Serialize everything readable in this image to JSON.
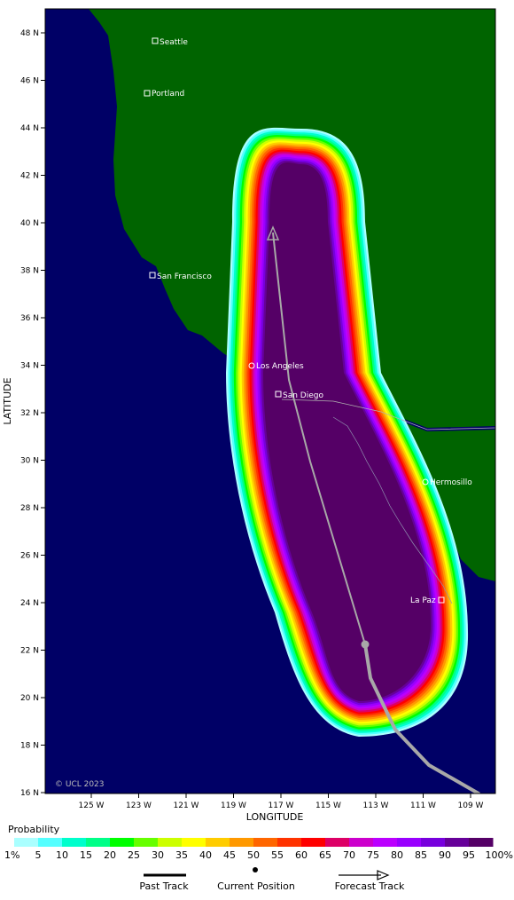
{
  "map": {
    "ylabel": "LATITUDE",
    "xlabel": "LONGITUDE",
    "watermark": "© UCL 2023",
    "lat_ticks": [
      "48 N",
      "46 N",
      "44 N",
      "42 N",
      "40 N",
      "38 N",
      "36 N",
      "34 N",
      "32 N",
      "30 N",
      "28 N",
      "26 N",
      "24 N",
      "22 N",
      "20 N",
      "18 N",
      "16 N"
    ],
    "lon_ticks": [
      "125 W",
      "123 W",
      "121 W",
      "119 W",
      "117 W",
      "115 W",
      "113 W",
      "111 W",
      "109 W"
    ],
    "cities": [
      {
        "name": "Seattle"
      },
      {
        "name": "Portland"
      },
      {
        "name": "San Francisco"
      },
      {
        "name": "Los Angeles"
      },
      {
        "name": "San Diego"
      },
      {
        "name": "Hermosillo"
      },
      {
        "name": "La Paz"
      }
    ],
    "colors": {
      "ocean": "#000066",
      "land": "#006400",
      "track": "#a8a8a8"
    }
  },
  "legend": {
    "title": "Probability",
    "labels": [
      "1%",
      "5",
      "10",
      "15",
      "20",
      "25",
      "30",
      "35",
      "40",
      "45",
      "50",
      "55",
      "60",
      "65",
      "70",
      "75",
      "80",
      "85",
      "90",
      "95",
      "100%"
    ],
    "colors": [
      "#aaffff",
      "#55ffff",
      "#00ffcc",
      "#00ff88",
      "#00ff00",
      "#66ff00",
      "#ccff00",
      "#ffff00",
      "#ffcc00",
      "#ff9900",
      "#ff6600",
      "#ff3300",
      "#ff0000",
      "#dd0066",
      "#cc00cc",
      "#bb00ff",
      "#9900ff",
      "#7700dd",
      "#660099",
      "#550066"
    ],
    "past_track": "Past Track",
    "current_position": "Current Position",
    "forecast_track": "Forecast Track"
  }
}
